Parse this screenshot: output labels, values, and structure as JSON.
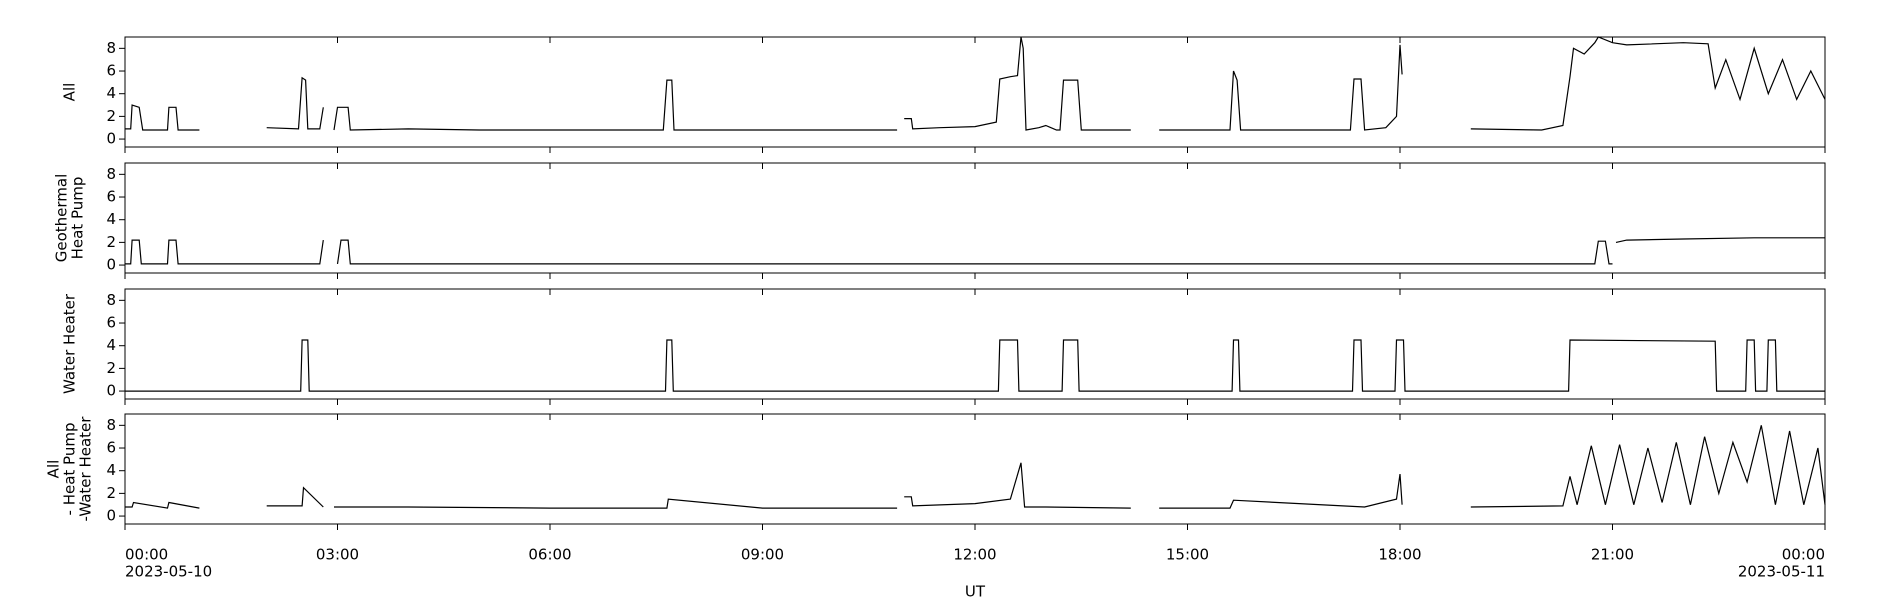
{
  "chart_data": [
    {
      "type": "line",
      "ylabel": [
        "All"
      ],
      "ylim": [
        -0.7,
        9.0
      ],
      "yticks": [
        0,
        2,
        4,
        6,
        8
      ],
      "x": [
        0,
        0.08,
        0.1,
        0.2,
        0.25,
        0.6,
        0.62,
        0.72,
        0.75,
        1.05,
        null,
        2.0,
        2.45,
        2.5,
        2.55,
        2.58,
        2.75,
        2.8,
        null,
        2.95,
        3.0,
        3.15,
        3.18,
        4.0,
        5.0,
        6.0,
        7.6,
        7.65,
        7.72,
        7.75,
        9.0,
        10.9,
        null,
        11.0,
        11.1,
        11.12,
        11.5,
        12.0,
        12.3,
        12.35,
        12.5,
        12.6,
        12.65,
        12.68,
        12.72,
        12.9,
        13.0,
        13.15,
        13.2,
        13.25,
        13.45,
        13.5,
        14.0,
        14.2,
        null,
        14.6,
        15.0,
        15.6,
        15.65,
        15.7,
        15.75,
        17.3,
        17.35,
        17.45,
        17.5,
        17.8,
        17.95,
        18.0,
        18.03,
        null,
        19.0,
        20.0,
        20.3,
        20.4,
        20.45,
        20.6,
        20.75,
        20.8,
        21.0,
        21.2,
        22.0,
        22.35,
        22.45,
        22.6,
        22.8,
        23.0,
        23.2,
        23.4,
        23.6,
        23.8,
        24.0
      ],
      "series": [
        {
          "color": "#000000",
          "values": [
            0.9,
            0.9,
            3.0,
            2.8,
            0.8,
            0.8,
            2.8,
            2.8,
            0.8,
            0.8,
            null,
            1.0,
            0.9,
            5.4,
            5.2,
            0.9,
            0.9,
            2.8,
            null,
            0.8,
            2.8,
            2.8,
            0.8,
            0.9,
            0.8,
            0.8,
            0.8,
            5.2,
            5.2,
            0.8,
            0.8,
            0.8,
            null,
            1.8,
            1.8,
            0.9,
            1.0,
            1.1,
            1.5,
            5.3,
            5.5,
            5.6,
            9.0,
            8.0,
            0.8,
            1.0,
            1.2,
            0.8,
            0.8,
            5.2,
            5.2,
            0.8,
            0.8,
            0.8,
            null,
            0.8,
            0.8,
            0.8,
            6.0,
            5.2,
            0.8,
            0.8,
            5.3,
            5.3,
            0.8,
            1.0,
            2.0,
            8.3,
            5.7,
            null,
            0.9,
            0.8,
            1.2,
            5.5,
            8.0,
            7.5,
            8.5,
            9.0,
            8.5,
            8.3,
            8.5,
            8.4,
            4.5,
            7.0,
            3.5,
            8.0,
            4.0,
            7.0,
            3.5,
            6.0,
            3.5
          ]
        }
      ]
    },
    {
      "type": "line",
      "ylabel": [
        "Geothermal",
        "Heat Pump"
      ],
      "ylim": [
        -0.7,
        9.0
      ],
      "yticks": [
        0,
        2,
        4,
        6,
        8
      ],
      "x": [
        0,
        0.08,
        0.1,
        0.2,
        0.23,
        0.6,
        0.62,
        0.72,
        0.75,
        2.75,
        2.8,
        null,
        3.0,
        3.05,
        3.15,
        3.18,
        10.0,
        20.75,
        20.8,
        20.9,
        20.95,
        21.0,
        null,
        21.05,
        21.2,
        22.0,
        23.0,
        24.0
      ],
      "series": [
        {
          "color": "#000000",
          "values": [
            0.1,
            0.1,
            2.2,
            2.2,
            0.1,
            0.1,
            2.2,
            2.2,
            0.1,
            0.1,
            2.2,
            null,
            0.1,
            2.2,
            2.2,
            0.1,
            0.1,
            0.1,
            2.1,
            2.1,
            0.1,
            0.1,
            null,
            2.0,
            2.2,
            2.3,
            2.4,
            2.4
          ]
        }
      ]
    },
    {
      "type": "line",
      "ylabel": [
        "Water Heater"
      ],
      "ylim": [
        -0.7,
        9.0
      ],
      "yticks": [
        0,
        2,
        4,
        6,
        8
      ],
      "x": [
        0,
        2.48,
        2.5,
        2.58,
        2.6,
        7.63,
        7.65,
        7.72,
        7.74,
        12.33,
        12.35,
        12.6,
        12.62,
        13.23,
        13.25,
        13.45,
        13.47,
        15.63,
        15.65,
        15.72,
        15.74,
        17.33,
        17.35,
        17.45,
        17.47,
        17.93,
        17.95,
        18.05,
        18.07,
        20.38,
        20.4,
        22.45,
        22.47,
        22.88,
        22.9,
        23.0,
        23.02,
        23.18,
        23.2,
        23.3,
        23.32,
        24.0
      ],
      "series": [
        {
          "color": "#000000",
          "values": [
            0,
            0,
            4.5,
            4.5,
            0,
            0,
            4.5,
            4.5,
            0,
            0,
            4.5,
            4.5,
            0,
            0,
            4.5,
            4.5,
            0,
            0,
            4.5,
            4.5,
            0,
            0,
            4.5,
            4.5,
            0,
            0,
            4.5,
            4.5,
            0,
            0,
            4.5,
            4.4,
            0,
            0,
            4.5,
            4.5,
            0,
            0,
            4.5,
            4.5,
            0,
            0
          ]
        }
      ]
    },
    {
      "type": "line",
      "ylabel": [
        "All",
        "- Heat Pump",
        "-Water Heater"
      ],
      "ylim": [
        -0.7,
        9.0
      ],
      "yticks": [
        0,
        2,
        4,
        6,
        8
      ],
      "x": [
        0,
        0.1,
        0.12,
        0.6,
        0.62,
        1.05,
        null,
        2.0,
        2.5,
        2.52,
        2.8,
        null,
        2.95,
        4.0,
        6.0,
        7.65,
        7.67,
        9.0,
        10.9,
        null,
        11.0,
        11.1,
        11.12,
        12.0,
        12.5,
        12.65,
        12.7,
        13.0,
        14.2,
        null,
        14.6,
        15.6,
        15.65,
        17.5,
        17.95,
        18.0,
        18.03,
        null,
        19.0,
        20.3,
        20.4,
        20.5,
        20.7,
        20.9,
        21.1,
        21.3,
        21.5,
        21.7,
        21.9,
        22.1,
        22.3,
        22.5,
        22.7,
        22.9,
        23.1,
        23.3,
        23.5,
        23.7,
        23.9,
        24.0
      ],
      "series": [
        {
          "color": "#000000",
          "values": [
            0.8,
            0.8,
            1.2,
            0.7,
            1.2,
            0.7,
            null,
            0.9,
            0.9,
            2.5,
            0.8,
            null,
            0.8,
            0.8,
            0.7,
            0.7,
            1.5,
            0.7,
            0.7,
            null,
            1.7,
            1.7,
            0.9,
            1.1,
            1.5,
            4.7,
            0.8,
            0.8,
            0.7,
            null,
            0.7,
            0.7,
            1.4,
            0.8,
            1.5,
            3.7,
            1.0,
            null,
            0.8,
            0.9,
            3.5,
            1.0,
            6.2,
            1.0,
            6.3,
            1.0,
            6.0,
            1.2,
            6.5,
            1.0,
            7.0,
            2.0,
            6.5,
            3.0,
            8.0,
            1.0,
            7.5,
            1.0,
            6.0,
            1.0
          ]
        }
      ]
    }
  ],
  "x_axis": {
    "xlabel": "UT",
    "xlim": [
      0,
      24
    ],
    "xticks": [
      {
        "value": 0,
        "label": "00:00"
      },
      {
        "value": 3,
        "label": "03:00"
      },
      {
        "value": 6,
        "label": "06:00"
      },
      {
        "value": 9,
        "label": "09:00"
      },
      {
        "value": 12,
        "label": "12:00"
      },
      {
        "value": 15,
        "label": "15:00"
      },
      {
        "value": 18,
        "label": "18:00"
      },
      {
        "value": 21,
        "label": "21:00"
      },
      {
        "value": 24,
        "label": "00:00"
      }
    ],
    "dates": [
      {
        "value": 0,
        "label": "2023-05-10"
      },
      {
        "value": 24,
        "label": "2023-05-11"
      }
    ]
  }
}
